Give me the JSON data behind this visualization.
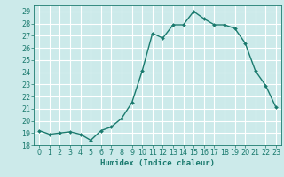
{
  "title": "",
  "xlabel": "Humidex (Indice chaleur)",
  "ylabel": "",
  "x": [
    0,
    1,
    2,
    3,
    4,
    5,
    6,
    7,
    8,
    9,
    10,
    11,
    12,
    13,
    14,
    15,
    16,
    17,
    18,
    19,
    20,
    21,
    22,
    23
  ],
  "y": [
    19.2,
    18.9,
    19.0,
    19.1,
    18.9,
    18.4,
    19.2,
    19.5,
    20.2,
    21.5,
    24.1,
    27.2,
    26.8,
    27.9,
    27.9,
    29.0,
    28.4,
    27.9,
    27.9,
    27.6,
    26.4,
    24.1,
    22.9,
    21.1
  ],
  "line_color": "#1a7a6e",
  "marker": "D",
  "marker_size": 2.0,
  "line_width": 1.0,
  "bg_color": "#cceaea",
  "grid_color": "#ffffff",
  "label_color": "#1a7a6e",
  "ylim": [
    18,
    29.5
  ],
  "yticks": [
    18,
    19,
    20,
    21,
    22,
    23,
    24,
    25,
    26,
    27,
    28,
    29
  ],
  "xticks": [
    0,
    1,
    2,
    3,
    4,
    5,
    6,
    7,
    8,
    9,
    10,
    11,
    12,
    13,
    14,
    15,
    16,
    17,
    18,
    19,
    20,
    21,
    22,
    23
  ],
  "axis_fontsize": 6.0,
  "tick_fontsize": 5.8,
  "xlabel_fontsize": 6.5
}
